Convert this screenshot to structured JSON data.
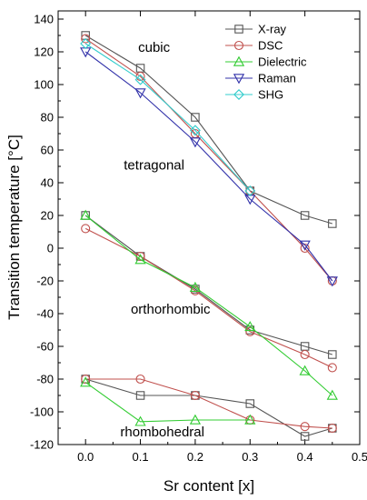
{
  "chart_data": {
    "type": "line",
    "title": "",
    "xlabel": "Sr content [x]",
    "ylabel": "Transition temperature [°C]",
    "xlim": [
      -0.05,
      0.5
    ],
    "ylim": [
      -120,
      145
    ],
    "xticks": [
      0.0,
      0.1,
      0.2,
      0.3,
      0.4,
      0.5
    ],
    "xtick_labels": [
      "0.0",
      "0.1",
      "0.2",
      "0.3",
      "0.4",
      "0.5"
    ],
    "yticks": [
      -120,
      -100,
      -80,
      -60,
      -40,
      -20,
      0,
      20,
      40,
      60,
      80,
      100,
      120,
      140
    ],
    "ytick_labels": [
      "-120",
      "-100",
      "-80",
      "-60",
      "-40",
      "-20",
      "0",
      "20",
      "40",
      "60",
      "80",
      "100",
      "120",
      "140"
    ],
    "grid": false,
    "legend_position": "top-right",
    "series": [
      {
        "name": "X-ray",
        "color": "#555555",
        "marker": "square",
        "segments": [
          [
            [
              0.0,
              130
            ],
            [
              0.1,
              110
            ],
            [
              0.2,
              80
            ],
            [
              0.3,
              35
            ],
            [
              0.4,
              20
            ],
            [
              0.45,
              15
            ]
          ],
          [
            [
              0.0,
              20
            ],
            [
              0.1,
              -5
            ],
            [
              0.2,
              -25
            ],
            [
              0.3,
              -50
            ],
            [
              0.4,
              -60
            ],
            [
              0.45,
              -65
            ]
          ],
          [
            [
              0.0,
              -80
            ],
            [
              0.1,
              -90
            ],
            [
              0.2,
              -90
            ],
            [
              0.3,
              -95
            ],
            [
              0.4,
              -115
            ],
            [
              0.45,
              -110
            ]
          ]
        ]
      },
      {
        "name": "DSC",
        "color": "#c0504d",
        "marker": "circle",
        "segments": [
          [
            [
              0.0,
              128
            ],
            [
              0.1,
              105
            ],
            [
              0.2,
              70
            ],
            [
              0.3,
              35
            ],
            [
              0.4,
              0
            ],
            [
              0.45,
              -20
            ]
          ],
          [
            [
              0.0,
              12
            ],
            [
              0.1,
              -5
            ],
            [
              0.2,
              -26
            ],
            [
              0.3,
              -51
            ],
            [
              0.4,
              -65
            ],
            [
              0.45,
              -73
            ]
          ],
          [
            [
              0.0,
              -80
            ],
            [
              0.1,
              -80
            ],
            [
              0.2,
              -90
            ],
            [
              0.3,
              -105
            ],
            [
              0.4,
              -109
            ],
            [
              0.45,
              -110
            ]
          ]
        ]
      },
      {
        "name": "Dielectric",
        "color": "#33cc33",
        "marker": "triangle-up",
        "segments": [
          [
            [
              0.0,
              20
            ],
            [
              0.1,
              -7
            ],
            [
              0.2,
              -24
            ],
            [
              0.3,
              -48
            ],
            [
              0.4,
              -75
            ],
            [
              0.45,
              -90
            ]
          ],
          [
            [
              0.0,
              -82
            ],
            [
              0.1,
              -106
            ],
            [
              0.2,
              -105
            ],
            [
              0.3,
              -105
            ]
          ]
        ]
      },
      {
        "name": "Raman",
        "color": "#3333aa",
        "marker": "triangle-down",
        "segments": [
          [
            [
              0.0,
              120
            ],
            [
              0.1,
              95
            ],
            [
              0.2,
              65
            ],
            [
              0.3,
              30
            ],
            [
              0.4,
              2
            ],
            [
              0.45,
              -20
            ]
          ]
        ]
      },
      {
        "name": "SHG",
        "color": "#33cccc",
        "marker": "diamond",
        "segments": [
          [
            [
              0.0,
              125
            ],
            [
              0.1,
              103
            ],
            [
              0.2,
              72
            ],
            [
              0.3,
              35
            ]
          ]
        ]
      }
    ],
    "annotations": [
      {
        "text": "cubic",
        "x": 0.125,
        "y": 120
      },
      {
        "text": "tetragonal",
        "x": 0.125,
        "y": 48
      },
      {
        "text": "orthorhombic",
        "x": 0.155,
        "y": -40
      },
      {
        "text": "rhombohedral",
        "x": 0.14,
        "y": -115
      }
    ]
  }
}
